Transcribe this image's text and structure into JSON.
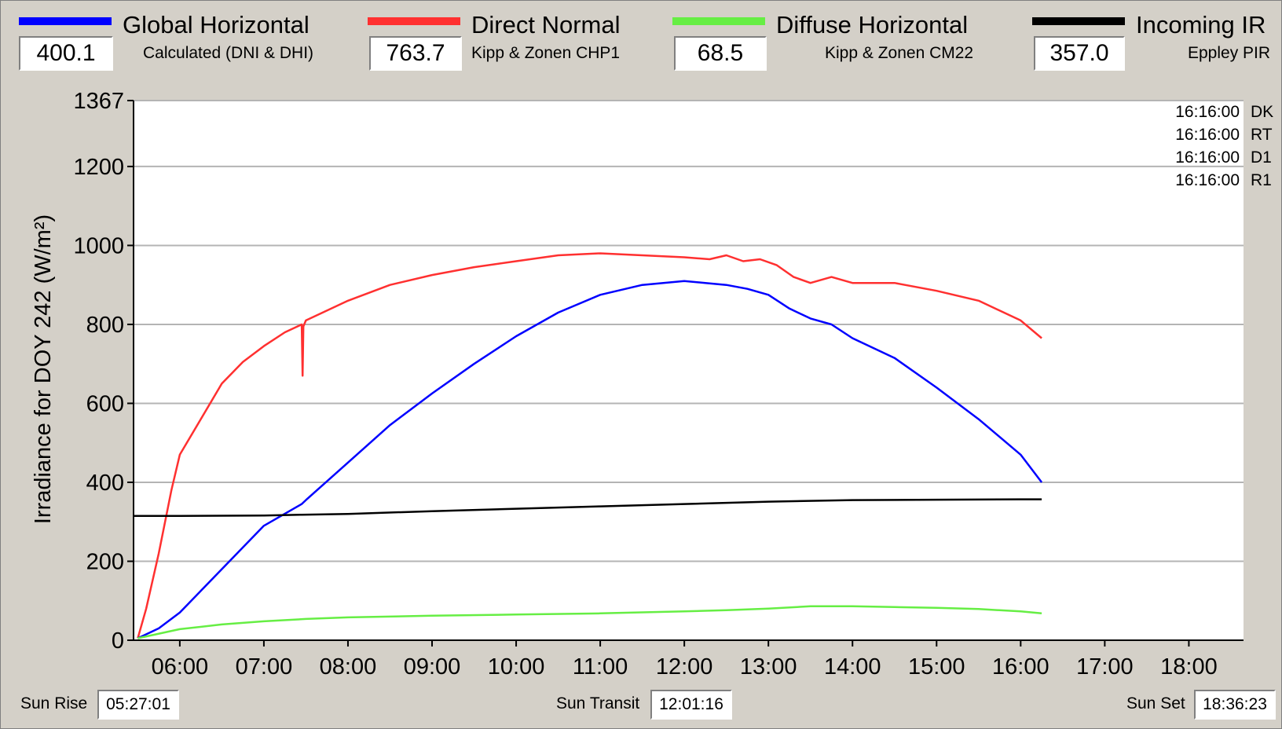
{
  "legend": [
    {
      "name": "Global Horizontal",
      "instrument": "Calculated (DNI & DHI)",
      "value": "400.1",
      "color": "#0000ff"
    },
    {
      "name": "Direct Normal",
      "instrument": "Kipp & Zonen CHP1",
      "value": "763.7",
      "color": "#ff3030"
    },
    {
      "name": "Diffuse Horizontal",
      "instrument": "Kipp & Zonen CM22",
      "value": "68.5",
      "color": "#66ee44"
    },
    {
      "name": "Incoming IR",
      "instrument": "Eppley PIR",
      "value": "357.0",
      "color": "#000000"
    }
  ],
  "status_rows": [
    {
      "time": "16:16:00",
      "code": "DK"
    },
    {
      "time": "16:16:00",
      "code": "RT"
    },
    {
      "time": "16:16:00",
      "code": "D1"
    },
    {
      "time": "16:16:00",
      "code": "R1"
    }
  ],
  "sun": {
    "rise_label": "Sun Rise",
    "rise_value": "05:27:01",
    "transit_label": "Sun Transit",
    "transit_value": "12:01:16",
    "set_label": "Sun Set",
    "set_value": "18:36:23"
  },
  "chart_data": {
    "type": "line",
    "ylabel": "Irradiance for DOY 242 (W/m²)",
    "xlabel": "",
    "xlim": [
      5.45,
      18.65
    ],
    "ylim": [
      0,
      1367
    ],
    "yticks": [
      0,
      200,
      400,
      600,
      800,
      1000,
      1200,
      1367
    ],
    "ytick_labels": [
      "0",
      "200",
      "400",
      "600",
      "800",
      "1000",
      "1200",
      "1367"
    ],
    "xticks": [
      6,
      7,
      8,
      9,
      10,
      11,
      12,
      13,
      14,
      15,
      16,
      17,
      18
    ],
    "xtick_labels": [
      "06:00",
      "07:00",
      "08:00",
      "09:00",
      "10:00",
      "11:00",
      "12:00",
      "13:00",
      "14:00",
      "15:00",
      "16:00",
      "17:00",
      "18:00"
    ],
    "grid": true,
    "series": [
      {
        "name": "Direct Normal",
        "color": "#ff3030",
        "x": [
          5.5,
          5.6,
          5.75,
          5.9,
          6.0,
          6.25,
          6.5,
          6.75,
          7.0,
          7.25,
          7.45,
          7.46,
          7.47,
          7.5,
          8.0,
          8.5,
          9.0,
          9.5,
          10.0,
          10.5,
          11.0,
          11.5,
          12.0,
          12.3,
          12.5,
          12.7,
          12.9,
          13.1,
          13.3,
          13.5,
          13.75,
          14.0,
          14.5,
          15.0,
          15.5,
          16.0,
          16.25
        ],
        "y": [
          5,
          80,
          220,
          380,
          470,
          560,
          650,
          705,
          745,
          780,
          800,
          670,
          795,
          810,
          860,
          900,
          925,
          945,
          960,
          975,
          980,
          975,
          970,
          965,
          975,
          960,
          965,
          950,
          920,
          905,
          920,
          905,
          905,
          885,
          860,
          810,
          765
        ]
      },
      {
        "name": "Global Horizontal",
        "color": "#0000ff",
        "x": [
          5.5,
          5.75,
          6.0,
          6.5,
          7.0,
          7.45,
          7.5,
          8.0,
          8.5,
          9.0,
          9.5,
          10.0,
          10.5,
          11.0,
          11.5,
          12.0,
          12.25,
          12.5,
          12.75,
          13.0,
          13.25,
          13.5,
          13.75,
          14.0,
          14.5,
          15.0,
          15.5,
          16.0,
          16.25
        ],
        "y": [
          5,
          30,
          70,
          180,
          290,
          345,
          355,
          450,
          545,
          625,
          700,
          770,
          830,
          875,
          900,
          910,
          905,
          900,
          890,
          875,
          840,
          815,
          800,
          765,
          715,
          640,
          560,
          470,
          400
        ]
      },
      {
        "name": "Incoming IR",
        "color": "#000000",
        "x": [
          5.45,
          6.0,
          7.0,
          7.45,
          8.0,
          9.0,
          10.0,
          11.0,
          12.0,
          13.0,
          14.0,
          15.0,
          16.0,
          16.25
        ],
        "y": [
          315,
          315,
          316,
          318,
          320,
          327,
          333,
          339,
          345,
          351,
          355,
          356,
          357,
          357
        ]
      },
      {
        "name": "Diffuse Horizontal",
        "color": "#66ee44",
        "x": [
          5.5,
          6.0,
          6.5,
          7.0,
          7.5,
          8.0,
          9.0,
          10.0,
          11.0,
          12.0,
          12.5,
          13.0,
          13.5,
          14.0,
          14.5,
          15.0,
          15.5,
          16.0,
          16.25
        ],
        "y": [
          5,
          28,
          40,
          48,
          54,
          58,
          62,
          65,
          68,
          73,
          76,
          80,
          86,
          86,
          84,
          82,
          79,
          73,
          68
        ]
      }
    ]
  }
}
